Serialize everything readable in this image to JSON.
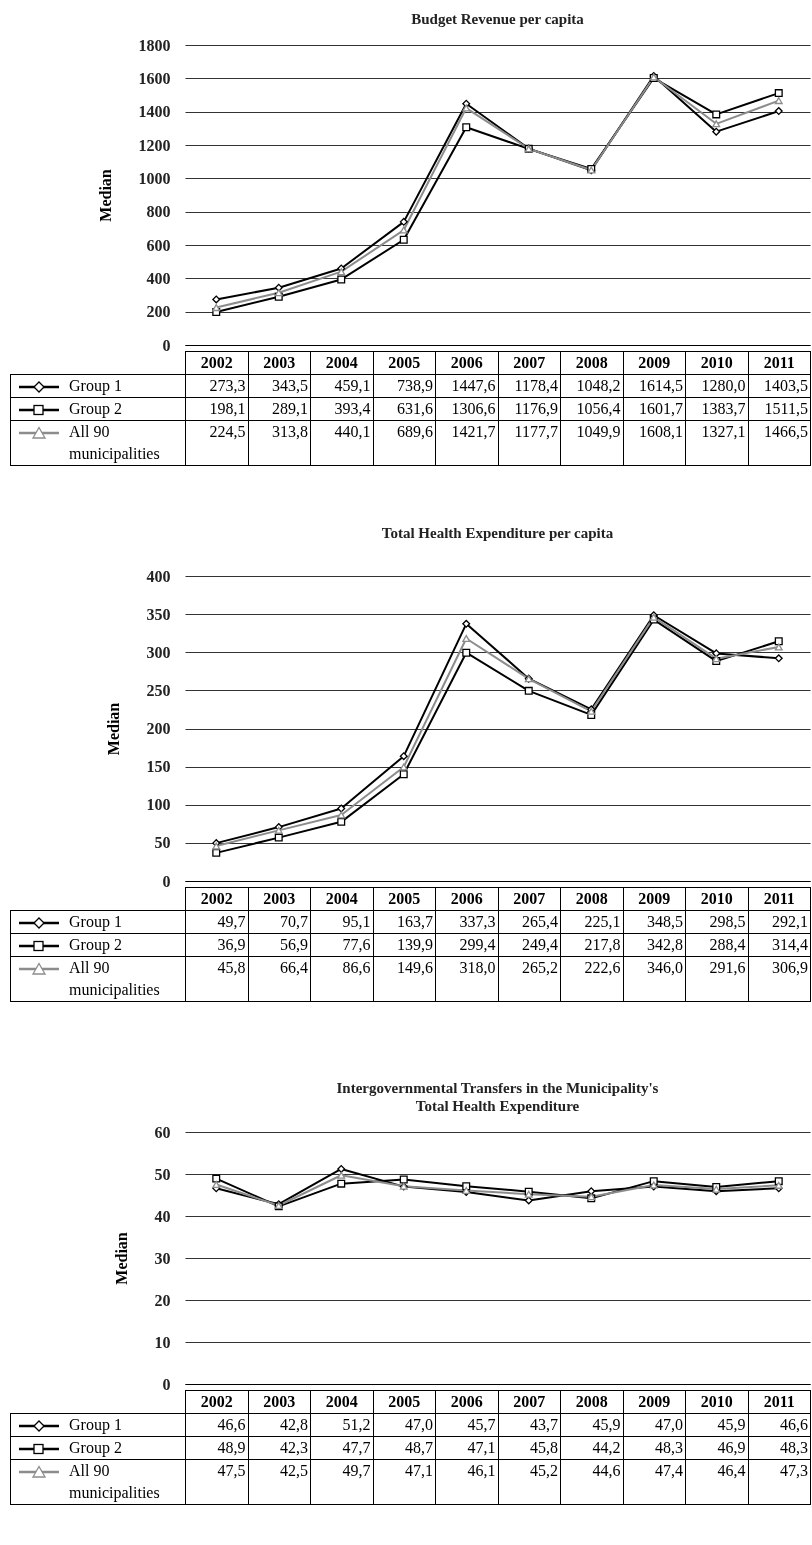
{
  "chart_data": [
    {
      "type": "line",
      "title": "Budget Revenue per capita",
      "ylabel": "Median",
      "categories": [
        "2002",
        "2003",
        "2004",
        "2005",
        "2006",
        "2007",
        "2008",
        "2009",
        "2010",
        "2011"
      ],
      "ylim": [
        0,
        1800
      ],
      "yticks": [
        0,
        200,
        400,
        600,
        800,
        1000,
        1200,
        1400,
        1600,
        1800
      ],
      "grid": "y",
      "legend": "bottom",
      "series": [
        {
          "name": "Group 1",
          "color": "#000000",
          "marker": "diamond",
          "values": [
            273.3,
            343.5,
            459.1,
            738.9,
            1447.6,
            1178.4,
            1048.2,
            1614.5,
            1280.0,
            1403.5
          ],
          "value_labels": [
            "273,3",
            "343,5",
            "459,1",
            "738,9",
            "1447,6",
            "1178,4",
            "1048,2",
            "1614,5",
            "1280,0",
            "1403,5"
          ]
        },
        {
          "name": "Group 2",
          "color": "#000000",
          "marker": "square",
          "values": [
            198.1,
            289.1,
            393.4,
            631.6,
            1306.6,
            1176.9,
            1056.4,
            1601.7,
            1383.7,
            1511.5
          ],
          "value_labels": [
            "198,1",
            "289,1",
            "393,4",
            "631,6",
            "1306,6",
            "1176,9",
            "1056,4",
            "1601,7",
            "1383,7",
            "1511,5"
          ]
        },
        {
          "name": "All 90 municipalities",
          "color": "#8c8c8c",
          "marker": "triangle",
          "values": [
            224.5,
            313.8,
            440.1,
            689.6,
            1421.7,
            1177.7,
            1049.9,
            1608.1,
            1327.1,
            1466.5
          ],
          "value_labels": [
            "224,5",
            "313,8",
            "440,1",
            "689,6",
            "1421,7",
            "1177,7",
            "1049,9",
            "1608,1",
            "1327,1",
            "1466,5"
          ]
        }
      ]
    },
    {
      "type": "line",
      "title": "Total Health Expenditure per capita",
      "ylabel": "Median",
      "categories": [
        "2002",
        "2003",
        "2004",
        "2005",
        "2006",
        "2007",
        "2008",
        "2009",
        "2010",
        "2011"
      ],
      "ylim": [
        0,
        400
      ],
      "yticks": [
        0,
        50,
        100,
        150,
        200,
        250,
        300,
        350,
        400
      ],
      "grid": "y",
      "legend": "bottom",
      "series": [
        {
          "name": "Group 1",
          "color": "#000000",
          "marker": "diamond",
          "values": [
            49.7,
            70.7,
            95.1,
            163.7,
            337.3,
            265.4,
            225.1,
            348.5,
            298.5,
            292.1
          ],
          "value_labels": [
            "49,7",
            "70,7",
            "95,1",
            "163,7",
            "337,3",
            "265,4",
            "225,1",
            "348,5",
            "298,5",
            "292,1"
          ]
        },
        {
          "name": "Group 2",
          "color": "#000000",
          "marker": "square",
          "values": [
            36.9,
            56.9,
            77.6,
            139.9,
            299.4,
            249.4,
            217.8,
            342.8,
            288.4,
            314.4
          ],
          "value_labels": [
            "36,9",
            "56,9",
            "77,6",
            "139,9",
            "299,4",
            "249,4",
            "217,8",
            "342,8",
            "288,4",
            "314,4"
          ]
        },
        {
          "name": "All 90 municipalities",
          "color": "#8c8c8c",
          "marker": "triangle",
          "values": [
            45.8,
            66.4,
            86.6,
            149.6,
            318.0,
            265.2,
            222.6,
            346.0,
            291.6,
            306.9
          ],
          "value_labels": [
            "45,8",
            "66,4",
            "86,6",
            "149,6",
            "318,0",
            "265,2",
            "222,6",
            "346,0",
            "291,6",
            "306,9"
          ]
        }
      ]
    },
    {
      "type": "line",
      "title": "Intergovernmental Transfers in the Municipality's\nTotal Health Expenditure",
      "ylabel": "Median",
      "categories": [
        "2002",
        "2003",
        "2004",
        "2005",
        "2006",
        "2007",
        "2008",
        "2009",
        "2010",
        "2011"
      ],
      "ylim": [
        0,
        60
      ],
      "yticks": [
        0,
        10,
        20,
        30,
        40,
        50,
        60
      ],
      "grid": "y",
      "legend": "bottom",
      "series": [
        {
          "name": "Group 1",
          "color": "#000000",
          "marker": "diamond",
          "values": [
            46.6,
            42.8,
            51.2,
            47.0,
            45.7,
            43.7,
            45.9,
            47.0,
            45.9,
            46.6
          ],
          "value_labels": [
            "46,6",
            "42,8",
            "51,2",
            "47,0",
            "45,7",
            "43,7",
            "45,9",
            "47,0",
            "45,9",
            "46,6"
          ]
        },
        {
          "name": "Group 2",
          "color": "#000000",
          "marker": "square",
          "values": [
            48.9,
            42.3,
            47.7,
            48.7,
            47.1,
            45.8,
            44.2,
            48.3,
            46.9,
            48.3
          ],
          "value_labels": [
            "48,9",
            "42,3",
            "47,7",
            "48,7",
            "47,1",
            "45,8",
            "44,2",
            "48,3",
            "46,9",
            "48,3"
          ]
        },
        {
          "name": "All 90 municipalities",
          "color": "#8c8c8c",
          "marker": "triangle",
          "values": [
            47.5,
            42.5,
            49.7,
            47.1,
            46.1,
            45.2,
            44.6,
            47.4,
            46.4,
            47.3
          ],
          "value_labels": [
            "47,5",
            "42,5",
            "49,7",
            "47,1",
            "46,1",
            "45,2",
            "44,6",
            "47,4",
            "46,4",
            "47,3"
          ]
        }
      ]
    }
  ]
}
